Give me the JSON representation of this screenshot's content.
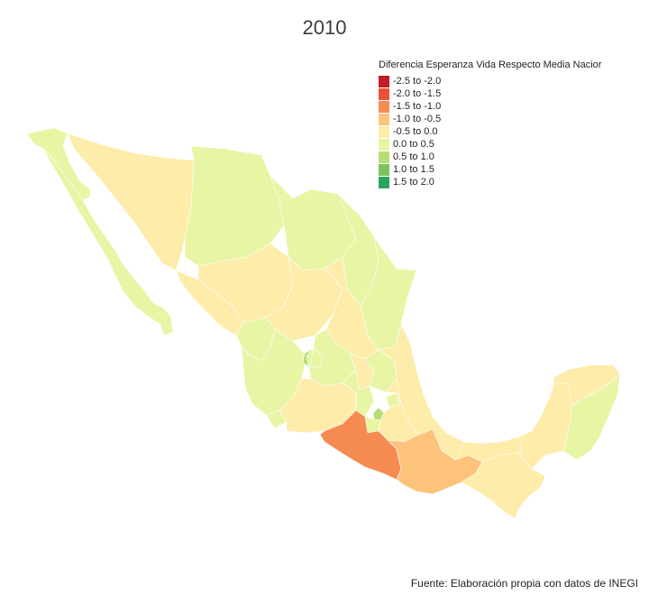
{
  "title": "2010",
  "legend": {
    "title": "Diferencia Esperanza Vida Respecto Media Nacior",
    "items": [
      {
        "label": "-2.5 to -2.0",
        "color": "#c01d24"
      },
      {
        "label": "-2.0 to -1.5",
        "color": "#e8513a"
      },
      {
        "label": "-1.5 to -1.0",
        "color": "#f68b52"
      },
      {
        "label": "-1.0 to -0.5",
        "color": "#fdc37b"
      },
      {
        "label": "-0.5 to 0.0",
        "color": "#fdecaa"
      },
      {
        "label": "0.0 to 0.5",
        "color": "#e8f5a5"
      },
      {
        "label": "0.5 to 1.0",
        "color": "#b7dd74"
      },
      {
        "label": "1.0 to 1.5",
        "color": "#7dc461"
      },
      {
        "label": "1.5 to 2.0",
        "color": "#2ea35a"
      }
    ]
  },
  "caption": "Fuente: Elaboración propia con datos de INEGI"
}
